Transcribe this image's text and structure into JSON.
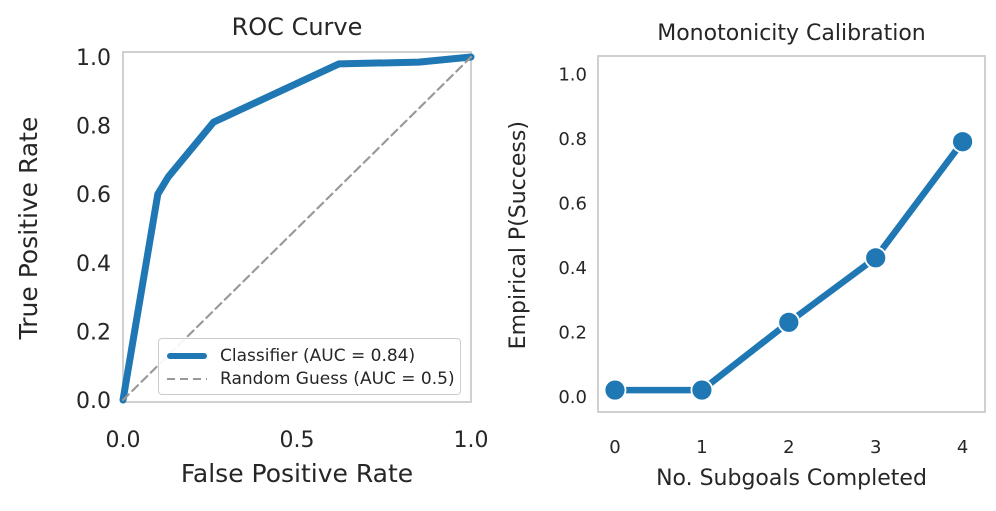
{
  "colors": {
    "accent_blue": "#1f77b4",
    "reference_gray": "#999999",
    "spine_gray": "#cbcbcb",
    "text": "#262626"
  },
  "chart_data": [
    {
      "id": "roc",
      "type": "line",
      "title": "ROC Curve",
      "xlabel": "False Positive Rate",
      "ylabel": "True Positive Rate",
      "xlim": [
        0,
        1
      ],
      "ylim": [
        0,
        1
      ],
      "grid": false,
      "legend_position": "lower right inside",
      "xtick_values": [
        0,
        0.5,
        1.0
      ],
      "xtick_labels": [
        "0.0",
        "0.5",
        "1.0"
      ],
      "ytick_values": [
        0,
        0.2,
        0.4,
        0.6,
        0.8,
        1.0
      ],
      "ytick_labels": [
        "0.0",
        "0.2",
        "0.4",
        "0.6",
        "0.8",
        "1.0"
      ],
      "series": [
        {
          "name": "Classifier (AUC = 0.84)",
          "color": "#1f77b4",
          "style": "solid",
          "line_width": 7,
          "marker": "none",
          "x": [
            0,
            0.1,
            0.13,
            0.26,
            0.62,
            0.85,
            1.0
          ],
          "y": [
            0,
            0.6,
            0.65,
            0.81,
            0.98,
            0.985,
            1.0
          ]
        },
        {
          "name": "Random Guess (AUC = 0.5)",
          "color": "#999999",
          "style": "dashed",
          "line_width": 2.2,
          "marker": "none",
          "x": [
            0,
            1
          ],
          "y": [
            0,
            1
          ]
        }
      ]
    },
    {
      "id": "calibration",
      "type": "line",
      "title": "Monotonicity Calibration",
      "xlabel": "No. Subgoals Completed",
      "ylabel": "Empirical P(Success)",
      "xlim": [
        -0.25,
        4.25
      ],
      "ylim": [
        -0.05,
        1.05
      ],
      "grid": false,
      "legend_position": "none",
      "xtick_values": [
        0,
        1,
        2,
        3,
        4
      ],
      "xtick_labels": [
        "0",
        "1",
        "2",
        "3",
        "4"
      ],
      "ytick_values": [
        0,
        0.2,
        0.4,
        0.6,
        0.8,
        1.0
      ],
      "ytick_labels": [
        "0.0",
        "0.2",
        "0.4",
        "0.6",
        "0.8",
        "1.0"
      ],
      "series": [
        {
          "name": "",
          "color": "#1f77b4",
          "style": "solid",
          "line_width": 6.5,
          "marker": "circle",
          "marker_size": 10.5,
          "x": [
            0,
            1,
            2,
            3,
            4
          ],
          "y": [
            0.02,
            0.02,
            0.23,
            0.43,
            0.79
          ]
        }
      ]
    }
  ]
}
